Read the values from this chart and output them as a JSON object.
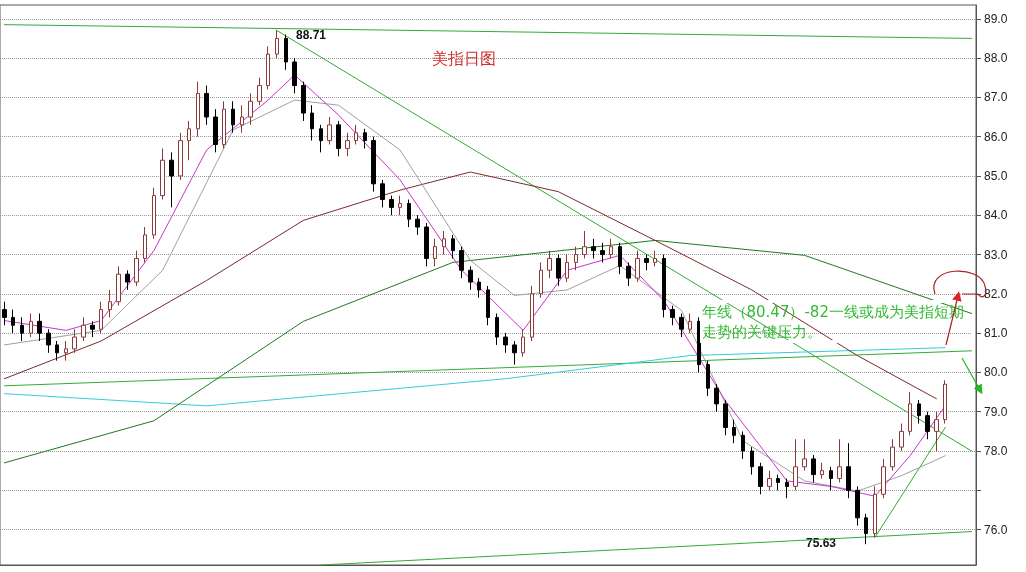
{
  "chart_data": {
    "type": "candlestick",
    "title": "美指日图",
    "categories": [
      null,
      null,
      null,
      null,
      null,
      null,
      null,
      null,
      null,
      null,
      null,
      null,
      null,
      null,
      null,
      null,
      null,
      null,
      null,
      null,
      null,
      null,
      null,
      null,
      null,
      null,
      null,
      null,
      null,
      null,
      null,
      null,
      null,
      null,
      null,
      null,
      null,
      null,
      null,
      null,
      null,
      null,
      null,
      null,
      null,
      null,
      null,
      null,
      null,
      null,
      null,
      null,
      null,
      null,
      null,
      null,
      null,
      null,
      null,
      null,
      null,
      null,
      null,
      null,
      null,
      null,
      null,
      null,
      null,
      null,
      null,
      null,
      null,
      null,
      null,
      null,
      null,
      null,
      null,
      null,
      null,
      null,
      null,
      null,
      null,
      null,
      null,
      null,
      null,
      null,
      null,
      null,
      null,
      null,
      null,
      null,
      null,
      null,
      null,
      null,
      null,
      null,
      null,
      null,
      null,
      null,
      null,
      null,
      null,
      null,
      null
    ],
    "ohlc": [
      [
        81.6,
        81.8,
        81.2,
        81.4
      ],
      [
        81.4,
        81.6,
        81.0,
        81.2
      ],
      [
        81.2,
        81.4,
        80.8,
        81.0
      ],
      [
        81.0,
        81.5,
        80.9,
        81.3
      ],
      [
        81.3,
        81.5,
        80.8,
        81.0
      ],
      [
        81.0,
        81.1,
        80.5,
        80.7
      ],
      [
        80.7,
        80.8,
        80.3,
        80.5
      ],
      [
        80.5,
        80.8,
        80.3,
        80.6
      ],
      [
        80.6,
        81.1,
        80.5,
        80.9
      ],
      [
        80.9,
        81.4,
        80.8,
        81.2
      ],
      [
        81.2,
        81.3,
        80.9,
        81.1
      ],
      [
        81.1,
        81.8,
        81.0,
        81.6
      ],
      [
        81.6,
        82.1,
        81.4,
        81.8
      ],
      [
        81.8,
        82.7,
        81.7,
        82.5
      ],
      [
        82.5,
        82.6,
        82.1,
        82.3
      ],
      [
        82.3,
        83.1,
        82.2,
        82.9
      ],
      [
        82.9,
        83.7,
        82.8,
        83.5
      ],
      [
        83.5,
        84.7,
        83.4,
        84.5
      ],
      [
        84.5,
        85.7,
        84.4,
        85.4
      ],
      [
        85.4,
        85.6,
        84.2,
        85.0
      ],
      [
        85.0,
        86.1,
        84.9,
        85.9
      ],
      [
        85.9,
        86.4,
        85.4,
        86.2
      ],
      [
        86.2,
        87.4,
        86.0,
        87.1
      ],
      [
        87.1,
        87.3,
        86.3,
        86.5
      ],
      [
        86.5,
        86.7,
        85.6,
        85.8
      ],
      [
        85.8,
        86.9,
        85.7,
        86.7
      ],
      [
        86.7,
        86.9,
        86.1,
        86.3
      ],
      [
        86.3,
        86.8,
        86.1,
        86.5
      ],
      [
        86.5,
        87.1,
        86.3,
        86.9
      ],
      [
        86.9,
        87.5,
        86.8,
        87.3
      ],
      [
        87.3,
        88.3,
        87.2,
        88.1
      ],
      [
        88.1,
        88.71,
        88.0,
        88.5
      ],
      [
        88.5,
        88.6,
        87.7,
        87.9
      ],
      [
        87.9,
        88.0,
        87.1,
        87.3
      ],
      [
        87.3,
        87.4,
        86.4,
        86.6
      ],
      [
        86.6,
        86.8,
        85.9,
        86.2
      ],
      [
        86.2,
        86.3,
        85.6,
        85.9
      ],
      [
        85.9,
        86.5,
        85.8,
        86.3
      ],
      [
        86.3,
        86.4,
        85.5,
        85.7
      ],
      [
        85.7,
        86.1,
        85.5,
        85.9
      ],
      [
        85.9,
        86.3,
        85.8,
        86.1
      ],
      [
        86.1,
        86.2,
        85.7,
        85.9
      ],
      [
        85.9,
        86.0,
        84.6,
        84.8
      ],
      [
        84.8,
        84.9,
        84.2,
        84.4
      ],
      [
        84.4,
        84.5,
        84.0,
        84.2
      ],
      [
        84.2,
        84.5,
        84.0,
        84.3
      ],
      [
        84.3,
        84.4,
        83.7,
        83.9
      ],
      [
        83.9,
        84.0,
        83.5,
        83.7
      ],
      [
        83.7,
        83.8,
        82.7,
        82.9
      ],
      [
        82.9,
        83.4,
        82.7,
        83.2
      ],
      [
        83.2,
        83.6,
        83.0,
        83.4
      ],
      [
        83.4,
        83.5,
        82.9,
        83.1
      ],
      [
        83.1,
        83.2,
        82.4,
        82.6
      ],
      [
        82.6,
        82.7,
        82.1,
        82.3
      ],
      [
        82.3,
        82.4,
        81.9,
        82.1
      ],
      [
        82.1,
        82.2,
        81.2,
        81.4
      ],
      [
        81.4,
        81.5,
        80.7,
        80.9
      ],
      [
        80.9,
        81.0,
        80.5,
        80.7
      ],
      [
        80.7,
        80.8,
        80.2,
        80.5
      ],
      [
        80.5,
        81.1,
        80.4,
        80.9
      ],
      [
        80.9,
        82.2,
        80.8,
        82.0
      ],
      [
        82.0,
        82.8,
        81.9,
        82.6
      ],
      [
        82.6,
        83.1,
        82.4,
        82.9
      ],
      [
        82.9,
        83.0,
        82.2,
        82.4
      ],
      [
        82.4,
        83.0,
        82.3,
        82.8
      ],
      [
        82.8,
        83.2,
        82.6,
        83.0
      ],
      [
        83.0,
        83.6,
        82.9,
        83.2
      ],
      [
        83.2,
        83.4,
        82.9,
        83.1
      ],
      [
        83.1,
        83.3,
        82.8,
        83.0
      ],
      [
        83.0,
        83.4,
        82.9,
        83.2
      ],
      [
        83.2,
        83.3,
        82.5,
        82.7
      ],
      [
        82.7,
        82.8,
        82.2,
        82.4
      ],
      [
        82.4,
        83.1,
        82.3,
        82.9
      ],
      [
        82.9,
        83.0,
        82.6,
        82.8
      ],
      [
        82.8,
        83.1,
        82.7,
        82.9
      ],
      [
        82.9,
        83.0,
        81.4,
        81.6
      ],
      [
        81.6,
        81.7,
        81.2,
        81.4
      ],
      [
        81.4,
        81.5,
        80.9,
        81.1
      ],
      [
        81.1,
        81.5,
        81.0,
        81.3
      ],
      [
        81.3,
        81.4,
        80.0,
        80.2
      ],
      [
        80.2,
        80.3,
        79.4,
        79.6
      ],
      [
        79.6,
        79.7,
        79.0,
        79.2
      ],
      [
        79.2,
        79.3,
        78.4,
        78.6
      ],
      [
        78.6,
        78.8,
        78.2,
        78.4
      ],
      [
        78.4,
        78.5,
        77.8,
        78.0
      ],
      [
        78.0,
        78.1,
        77.4,
        77.6
      ],
      [
        77.6,
        77.7,
        76.9,
        77.1
      ],
      [
        77.1,
        77.5,
        77.0,
        77.3
      ],
      [
        77.3,
        77.4,
        77.0,
        77.2
      ],
      [
        77.2,
        77.3,
        76.8,
        77.1
      ],
      [
        77.1,
        78.3,
        77.0,
        77.6
      ],
      [
        77.6,
        78.3,
        77.5,
        77.8
      ],
      [
        77.8,
        77.9,
        77.2,
        77.4
      ],
      [
        77.4,
        77.7,
        77.3,
        77.5
      ],
      [
        77.5,
        77.6,
        77.0,
        77.3
      ],
      [
        77.3,
        78.3,
        77.2,
        77.6
      ],
      [
        77.6,
        78.2,
        76.8,
        77.0
      ],
      [
        77.0,
        77.1,
        76.1,
        76.3
      ],
      [
        76.3,
        76.4,
        75.63,
        75.9
      ],
      [
        75.9,
        77.1,
        75.8,
        76.9
      ],
      [
        76.9,
        77.8,
        76.8,
        77.6
      ],
      [
        77.6,
        78.3,
        77.5,
        78.1
      ],
      [
        78.1,
        78.7,
        78.0,
        78.5
      ],
      [
        78.5,
        79.5,
        78.4,
        79.2
      ],
      [
        79.2,
        79.3,
        78.7,
        78.9
      ],
      [
        78.9,
        79.0,
        78.3,
        78.5
      ],
      [
        78.5,
        79.0,
        78.0,
        78.8
      ],
      [
        78.8,
        79.8,
        78.7,
        79.7
      ],
      null,
      null,
      null
    ],
    "colors": [
      "#000000",
      "#000000",
      "#000000",
      "#8b3a3a",
      "#000000",
      "#000000",
      "#000000",
      "#8b3a3a",
      "#8b3a3a",
      "#8b3a3a",
      "#000000",
      "#8b3a3a",
      "#8b3a3a",
      "#8b3a3a",
      "#000000",
      "#8b3a3a",
      "#8b3a3a",
      "#8b3a3a",
      "#8b3a3a",
      "#000000",
      "#8b3a3a",
      "#8b3a3a",
      "#8b3a3a",
      "#000000",
      "#000000",
      "#8b3a3a",
      "#000000",
      "#8b3a3a",
      "#8b3a3a",
      "#8b3a3a",
      "#8b3a3a",
      "#8b3a3a",
      "#000000",
      "#000000",
      "#000000",
      "#000000",
      "#000000",
      "#8b3a3a",
      "#000000",
      "#8b3a3a",
      "#8b3a3a",
      "#000000",
      "#000000",
      "#000000",
      "#000000",
      "#8b3a3a",
      "#000000",
      "#000000",
      "#000000",
      "#8b3a3a",
      "#8b3a3a",
      "#000000",
      "#000000",
      "#000000",
      "#000000",
      "#000000",
      "#000000",
      "#000000",
      "#000000",
      "#8b3a3a",
      "#8b3a3a",
      "#8b3a3a",
      "#8b3a3a",
      "#000000",
      "#8b3a3a",
      "#8b3a3a",
      "#8b3a3a",
      "#000000",
      "#000000",
      "#8b3a3a",
      "#000000",
      "#000000",
      "#8b3a3a",
      "#000000",
      "#8b3a3a",
      "#000000",
      "#000000",
      "#000000",
      "#8b3a3a",
      "#000000",
      "#000000",
      "#000000",
      "#000000",
      "#000000",
      "#000000",
      "#000000",
      "#000000",
      "#8b3a3a",
      "#000000",
      "#000000",
      "#8b3a3a",
      "#8b3a3a",
      "#000000",
      "#8b3a3a",
      "#000000",
      "#8b3a3a",
      "#000000",
      "#000000",
      "#000000",
      "#8b3a3a",
      "#8b3a3a",
      "#8b3a3a",
      "#8b3a3a",
      "#8b3a3a",
      "#000000",
      "#000000",
      "#8b3a3a",
      "#8b3a3a",
      null,
      null,
      null
    ],
    "series": [
      {
        "type": "line",
        "color": "#33aa33",
        "values": [
          88.85,
          null,
          null,
          null,
          null,
          null,
          null,
          null,
          null,
          null,
          null,
          null,
          null,
          null,
          null,
          null,
          null,
          null,
          null,
          null,
          null,
          null,
          null,
          null,
          null,
          null,
          null,
          null,
          null,
          null,
          null,
          null,
          null,
          null,
          null,
          null,
          null,
          null,
          null,
          null,
          null,
          null,
          null,
          null,
          null,
          null,
          null,
          null,
          null,
          null,
          null,
          null,
          null,
          null,
          null,
          null,
          null,
          null,
          null,
          null,
          null,
          null,
          null,
          null,
          null,
          null,
          null,
          null,
          null,
          null,
          null,
          null,
          null,
          null,
          null,
          null,
          null,
          null,
          null,
          null,
          null,
          null,
          null,
          null,
          null,
          null,
          null,
          null,
          null,
          null,
          null,
          null,
          null,
          null,
          null,
          null,
          null,
          null,
          null,
          null,
          null,
          null,
          null,
          null,
          null,
          null,
          null,
          null,
          null,
          null,
          88.5
        ]
      },
      {
        "type": "line",
        "color": "#33aa33",
        "values": [
          null,
          null,
          null,
          null,
          null,
          null,
          null,
          null,
          null,
          null,
          null,
          null,
          null,
          null,
          null,
          null,
          null,
          null,
          null,
          null,
          null,
          null,
          null,
          null,
          null,
          null,
          null,
          null,
          null,
          null,
          null,
          88.7,
          null,
          null,
          null,
          null,
          null,
          null,
          null,
          null,
          null,
          null,
          null,
          null,
          null,
          null,
          null,
          null,
          null,
          null,
          null,
          null,
          null,
          null,
          null,
          null,
          null,
          null,
          null,
          null,
          null,
          null,
          null,
          null,
          null,
          null,
          null,
          null,
          null,
          null,
          null,
          null,
          null,
          null,
          null,
          null,
          null,
          null,
          null,
          null,
          null,
          null,
          null,
          null,
          null,
          null,
          null,
          null,
          null,
          null,
          null,
          null,
          null,
          null,
          null,
          null,
          null,
          null,
          null,
          null,
          null,
          null,
          null,
          null,
          null,
          null,
          null,
          null,
          null,
          null,
          78.0
        ]
      },
      {
        "type": "line",
        "color": "#33aa33",
        "values": [
          79.66,
          null,
          null,
          null,
          null,
          null,
          null,
          null,
          null,
          null,
          null,
          null,
          null,
          null,
          null,
          null,
          null,
          null,
          null,
          null,
          null,
          null,
          null,
          null,
          null,
          null,
          null,
          null,
          null,
          null,
          null,
          null,
          null,
          null,
          null,
          null,
          null,
          null,
          null,
          null,
          null,
          null,
          null,
          null,
          null,
          null,
          null,
          null,
          null,
          null,
          null,
          null,
          null,
          null,
          null,
          null,
          null,
          null,
          null,
          null,
          null,
          null,
          null,
          null,
          null,
          null,
          null,
          null,
          null,
          null,
          null,
          null,
          null,
          null,
          null,
          null,
          null,
          null,
          null,
          null,
          null,
          null,
          null,
          null,
          null,
          null,
          null,
          null,
          null,
          null,
          null,
          null,
          null,
          null,
          null,
          null,
          null,
          null,
          null,
          null,
          null,
          null,
          null,
          null,
          null,
          null,
          null,
          null,
          null,
          null,
          80.55
        ]
      },
      {
        "type": "line",
        "color": "#33aa33",
        "values": [
          null,
          null,
          null,
          null,
          null,
          null,
          null,
          null,
          null,
          null,
          null,
          null,
          null,
          null,
          null,
          null,
          null,
          null,
          null,
          null,
          null,
          null,
          null,
          null,
          null,
          null,
          null,
          null,
          null,
          null,
          null,
          null,
          null,
          null,
          null,
          null,
          75.1,
          null,
          null,
          null,
          null,
          null,
          null,
          null,
          null,
          null,
          null,
          null,
          null,
          null,
          null,
          null,
          null,
          null,
          null,
          null,
          null,
          null,
          null,
          null,
          null,
          null,
          null,
          null,
          null,
          null,
          null,
          null,
          null,
          null,
          null,
          null,
          null,
          null,
          null,
          null,
          null,
          null,
          null,
          null,
          null,
          null,
          null,
          null,
          null,
          null,
          null,
          null,
          null,
          null,
          null,
          null,
          null,
          null,
          null,
          null,
          null,
          null,
          null,
          null,
          null,
          null,
          null,
          null,
          null,
          null,
          null,
          null,
          null,
          null,
          75.95
        ]
      },
      {
        "type": "line",
        "color": "#33aa33",
        "values": [
          null,
          null,
          null,
          null,
          null,
          null,
          null,
          null,
          null,
          null,
          null,
          null,
          null,
          null,
          null,
          null,
          null,
          null,
          null,
          null,
          null,
          null,
          null,
          null,
          null,
          null,
          null,
          null,
          null,
          null,
          null,
          null,
          null,
          null,
          null,
          null,
          null,
          null,
          null,
          null,
          null,
          null,
          null,
          null,
          null,
          null,
          null,
          null,
          null,
          null,
          null,
          null,
          null,
          null,
          null,
          null,
          null,
          null,
          null,
          null,
          null,
          null,
          null,
          null,
          null,
          null,
          null,
          null,
          null,
          null,
          null,
          null,
          null,
          null,
          null,
          null,
          null,
          null,
          null,
          null,
          null,
          null,
          null,
          null,
          null,
          null,
          null,
          null,
          null,
          null,
          null,
          null,
          null,
          null,
          null,
          null,
          null,
          null,
          null,
          75.8,
          null,
          null,
          null,
          null,
          null,
          null,
          null,
          78.6,
          null,
          null,
          null
        ]
      },
      {
        "type": "line",
        "color": "#33ccdd",
        "values": [
          79.46,
          null,
          null,
          null,
          null,
          null,
          null,
          null,
          null,
          null,
          null,
          null,
          null,
          null,
          null,
          null,
          null,
          null,
          null,
          null,
          null,
          null,
          null,
          79.15,
          null,
          null,
          null,
          null,
          null,
          null,
          null,
          null,
          null,
          null,
          null,
          null,
          null,
          null,
          null,
          null,
          null,
          null,
          null,
          null,
          null,
          null,
          null,
          null,
          null,
          null,
          null,
          null,
          null,
          null,
          null,
          null,
          null,
          79.84,
          null,
          null,
          null,
          null,
          null,
          null,
          null,
          null,
          null,
          null,
          null,
          null,
          null,
          null,
          null,
          null,
          null,
          null,
          null,
          null,
          80.43,
          null,
          null,
          null,
          null,
          null,
          null,
          null,
          null,
          null,
          null,
          null,
          null,
          null,
          null,
          null,
          null,
          null,
          null,
          null,
          null,
          null,
          null,
          null,
          null,
          null,
          null,
          null,
          null,
          80.63,
          null,
          null,
          null
        ]
      },
      {
        "type": "line",
        "color": "#1e7a1e",
        "values": [
          77.7,
          null,
          null,
          null,
          null,
          null,
          null,
          null,
          null,
          null,
          null,
          null,
          null,
          null,
          null,
          null,
          null,
          78.77,
          null,
          null,
          null,
          null,
          null,
          null,
          null,
          null,
          null,
          null,
          null,
          null,
          null,
          null,
          null,
          null,
          81.3,
          null,
          null,
          null,
          null,
          null,
          null,
          null,
          null,
          null,
          null,
          null,
          null,
          null,
          null,
          null,
          null,
          82.8,
          null,
          null,
          null,
          null,
          null,
          null,
          null,
          null,
          null,
          null,
          null,
          null,
          null,
          null,
          null,
          null,
          null,
          null,
          null,
          null,
          null,
          null,
          83.36,
          null,
          null,
          null,
          null,
          null,
          null,
          null,
          null,
          null,
          null,
          null,
          null,
          null,
          null,
          null,
          null,
          82.98,
          null,
          null,
          null,
          null,
          null,
          null,
          null,
          null,
          null,
          null,
          null,
          null,
          null,
          null,
          null,
          null,
          null,
          null,
          81.5
        ]
      },
      {
        "type": "line",
        "color": "#7a2a2a",
        "values": [
          79.84,
          null,
          null,
          null,
          null,
          null,
          null,
          null,
          null,
          null,
          null,
          80.8,
          null,
          null,
          null,
          null,
          null,
          null,
          null,
          null,
          null,
          null,
          null,
          82.34,
          null,
          null,
          null,
          null,
          null,
          null,
          null,
          null,
          null,
          null,
          83.87,
          null,
          null,
          null,
          null,
          null,
          null,
          null,
          null,
          null,
          null,
          84.64,
          null,
          null,
          null,
          null,
          null,
          null,
          null,
          85.1,
          null,
          null,
          null,
          null,
          null,
          null,
          null,
          null,
          null,
          84.6,
          null,
          null,
          null,
          null,
          null,
          null,
          null,
          null,
          null,
          null,
          83.36,
          null,
          null,
          null,
          null,
          null,
          null,
          null,
          null,
          null,
          null,
          82.1,
          null,
          null,
          null,
          null,
          null,
          null,
          null,
          null,
          null,
          null,
          null,
          80.43,
          null,
          null,
          null,
          null,
          null,
          null,
          null,
          null,
          79.33,
          null,
          null,
          null,
          null
        ]
      },
      {
        "type": "line",
        "color": "#a0a0a0",
        "values": [
          80.7,
          null,
          null,
          null,
          null,
          null,
          null,
          null,
          null,
          null,
          null,
          81.07,
          null,
          null,
          null,
          null,
          null,
          null,
          82.6,
          null,
          null,
          null,
          null,
          null,
          null,
          null,
          86.17,
          null,
          null,
          null,
          null,
          null,
          null,
          86.93,
          null,
          null,
          null,
          null,
          86.8,
          null,
          null,
          null,
          null,
          null,
          null,
          85.66,
          null,
          null,
          null,
          null,
          null,
          null,
          null,
          82.85,
          null,
          null,
          null,
          null,
          81.96,
          null,
          null,
          null,
          null,
          null,
          82.1,
          null,
          null,
          null,
          null,
          null,
          82.72,
          null,
          null,
          null,
          null,
          null,
          null,
          81.58,
          null,
          null,
          null,
          null,
          null,
          null,
          78.26,
          null,
          null,
          null,
          null,
          null,
          null,
          77.24,
          null,
          null,
          null,
          null,
          null,
          76.98,
          null,
          null,
          null,
          null,
          77.37,
          null,
          null,
          null,
          null,
          77.88,
          null,
          null,
          null
        ]
      },
      {
        "type": "line",
        "color": "#cc33cc",
        "values": [
          81.32,
          null,
          null,
          null,
          null,
          null,
          null,
          81.07,
          null,
          null,
          null,
          81.32,
          null,
          null,
          null,
          null,
          null,
          83.1,
          null,
          null,
          null,
          null,
          null,
          85.66,
          null,
          null,
          null,
          null,
          null,
          null,
          86.93,
          null,
          null,
          87.57,
          null,
          null,
          null,
          null,
          86.55,
          null,
          null,
          null,
          null,
          null,
          null,
          84.9,
          null,
          null,
          null,
          null,
          null,
          null,
          82.6,
          null,
          null,
          null,
          null,
          null,
          null,
          81.07,
          null,
          null,
          null,
          null,
          82.6,
          null,
          null,
          null,
          null,
          null,
          82.98,
          null,
          null,
          null,
          null,
          81.83,
          null,
          null,
          null,
          null,
          null,
          null,
          79.28,
          null,
          null,
          null,
          null,
          null,
          null,
          77.24,
          null,
          null,
          null,
          null,
          77.1,
          null,
          null,
          null,
          null,
          76.85,
          null,
          null,
          null,
          77.88,
          null,
          null,
          null,
          79.15,
          null,
          null,
          null
        ]
      }
    ],
    "ylim": [
      75.1,
      89.35
    ],
    "yticks": [
      {
        "value": 76,
        "label": "76.0"
      },
      {
        "value": 77,
        "label": null
      },
      {
        "value": 78,
        "label": "78.0"
      },
      {
        "value": 79,
        "label": "79.0"
      },
      {
        "value": 80,
        "label": "80.0"
      },
      {
        "value": 81,
        "label": "81.0"
      },
      {
        "value": 82,
        "label": "82.0"
      },
      {
        "value": 83,
        "label": "83.0"
      },
      {
        "value": 84,
        "label": "84.0"
      },
      {
        "value": 85,
        "label": "85.0"
      },
      {
        "value": 86,
        "label": "86.0"
      },
      {
        "value": 87,
        "label": "87.0"
      },
      {
        "value": 88,
        "label": "88.0"
      },
      {
        "value": 89,
        "label": "89.0"
      }
    ],
    "grid": "y",
    "annotations": [
      {
        "text": "88.71",
        "y": 88.71
      },
      "75.63",
      "年线（80.47）-82一线或成为美指短期走势的关键压力。"
    ]
  }
}
